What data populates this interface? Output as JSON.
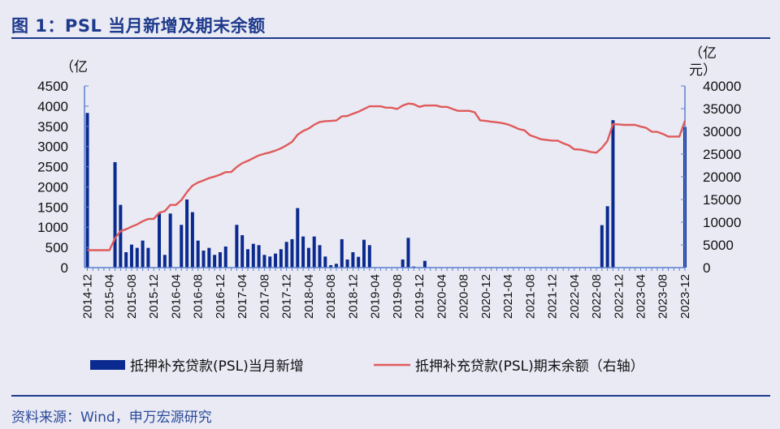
{
  "title": "图 1：PSL 当月新增及期末余额",
  "source": "资料来源：Wind，申万宏源研究",
  "chart_data": {
    "type": "bar+line",
    "categories": [
      "2014-12",
      "2015-01",
      "2015-02",
      "2015-03",
      "2015-04",
      "2015-05",
      "2015-06",
      "2015-07",
      "2015-08",
      "2015-09",
      "2015-10",
      "2015-11",
      "2015-12",
      "2016-01",
      "2016-02",
      "2016-03",
      "2016-04",
      "2016-05",
      "2016-06",
      "2016-07",
      "2016-08",
      "2016-09",
      "2016-10",
      "2016-11",
      "2016-12",
      "2017-01",
      "2017-02",
      "2017-03",
      "2017-04",
      "2017-05",
      "2017-06",
      "2017-07",
      "2017-08",
      "2017-09",
      "2017-10",
      "2017-11",
      "2017-12",
      "2018-01",
      "2018-02",
      "2018-03",
      "2018-04",
      "2018-05",
      "2018-06",
      "2018-07",
      "2018-08",
      "2018-09",
      "2018-10",
      "2018-11",
      "2018-12",
      "2019-01",
      "2019-02",
      "2019-03",
      "2019-04",
      "2019-05",
      "2019-06",
      "2019-07",
      "2019-08",
      "2019-09",
      "2019-10",
      "2019-11",
      "2019-12",
      "2020-01",
      "2020-02",
      "2020-03",
      "2020-04",
      "2020-05",
      "2020-06",
      "2020-07",
      "2020-08",
      "2020-09",
      "2020-10",
      "2020-11",
      "2020-12",
      "2021-01",
      "2021-02",
      "2021-03",
      "2021-04",
      "2021-05",
      "2021-06",
      "2021-07",
      "2021-08",
      "2021-09",
      "2021-10",
      "2021-11",
      "2021-12",
      "2022-01",
      "2022-02",
      "2022-03",
      "2022-04",
      "2022-05",
      "2022-06",
      "2022-07",
      "2022-08",
      "2022-09",
      "2022-10",
      "2022-11",
      "2022-12",
      "2023-01",
      "2023-02",
      "2023-03",
      "2023-04",
      "2023-05",
      "2023-06",
      "2023-07",
      "2023-08",
      "2023-09",
      "2023-10",
      "2023-11",
      "2023-12"
    ],
    "xticks": [
      "2014-12",
      "2015-04",
      "2015-08",
      "2015-12",
      "2016-04",
      "2016-08",
      "2016-12",
      "2017-04",
      "2017-08",
      "2017-12",
      "2018-04",
      "2018-08",
      "2018-12",
      "2019-04",
      "2019-08",
      "2019-12",
      "2020-04",
      "2020-08",
      "2020-12",
      "2021-04",
      "2021-08",
      "2021-12",
      "2022-04",
      "2022-08",
      "2022-12",
      "2023-04",
      "2023-08",
      "2023-12"
    ],
    "series": [
      {
        "name": "抵押补充贷款(PSL)当月新增",
        "type": "bar",
        "axis": "left",
        "color": "#0a2a8f",
        "values": [
          3831,
          0,
          0,
          0,
          0,
          2613,
          1554,
          382,
          570,
          489,
          670,
          489,
          0,
          1340,
          315,
          1340,
          0,
          1059,
          1688,
          1374,
          670,
          422,
          489,
          315,
          382,
          523,
          0,
          1059,
          804,
          456,
          590,
          556,
          315,
          275,
          348,
          456,
          637,
          704,
          1474,
          771,
          489,
          771,
          556,
          275,
          60,
          95,
          704,
          201,
          382,
          268,
          690,
          556,
          0,
          0,
          0,
          0,
          0,
          201,
          737,
          27,
          0,
          168,
          0,
          0,
          0,
          0,
          0,
          0,
          0,
          0,
          0,
          0,
          0,
          0,
          0,
          0,
          0,
          0,
          0,
          0,
          0,
          0,
          0,
          0,
          0,
          0,
          0,
          0,
          0,
          0,
          0,
          0,
          0,
          1052,
          1521,
          3652,
          0,
          0,
          0,
          0,
          0,
          0,
          0,
          0,
          0,
          0,
          0,
          0,
          3484
        ]
      },
      {
        "name": "抵押补充贷款(PSL)期末余额（右轴）",
        "type": "line",
        "axis": "right",
        "color": "#e05a5a",
        "values": [
          3831,
          3831,
          3831,
          3831,
          3831,
          6470,
          8050,
          8440,
          9020,
          9520,
          10210,
          10720,
          10730,
          12090,
          12420,
          13800,
          13810,
          14900,
          16630,
          18050,
          18750,
          19200,
          19720,
          20060,
          20470,
          21030,
          21050,
          22160,
          23000,
          23500,
          24130,
          24720,
          25070,
          25380,
          25760,
          26260,
          26950,
          27700,
          29260,
          30090,
          30630,
          31460,
          32070,
          32250,
          32300,
          32400,
          33320,
          33400,
          33900,
          34330,
          34930,
          35520,
          35520,
          35520,
          35220,
          35220,
          34930,
          35700,
          36120,
          36000,
          35400,
          35700,
          35700,
          35700,
          35400,
          35400,
          34930,
          34510,
          34510,
          34510,
          34210,
          32430,
          32300,
          32130,
          32000,
          31830,
          31540,
          31060,
          30500,
          30230,
          29150,
          28740,
          28260,
          28100,
          27970,
          27970,
          27370,
          26950,
          26060,
          26000,
          25760,
          25470,
          25300,
          26350,
          27870,
          31600,
          31540,
          31420,
          31420,
          31420,
          31060,
          30760,
          29930,
          29900,
          29450,
          28860,
          28860,
          28860,
          32340
        ]
      }
    ],
    "left_axis": {
      "unit": "（亿",
      "ylim": [
        0,
        4500
      ],
      "ticks": [
        "0",
        "500",
        "1000",
        "1500",
        "2000",
        "2500",
        "3000",
        "3500",
        "4000",
        "4500"
      ]
    },
    "right_axis": {
      "unit_line1": "（亿",
      "unit_line2": "元）",
      "ylim": [
        0,
        40000
      ],
      "ticks": [
        "0",
        "5000",
        "10000",
        "15000",
        "20000",
        "25000",
        "30000",
        "35000",
        "40000"
      ]
    },
    "legend": {
      "placement": "bottom"
    },
    "grid": false
  }
}
